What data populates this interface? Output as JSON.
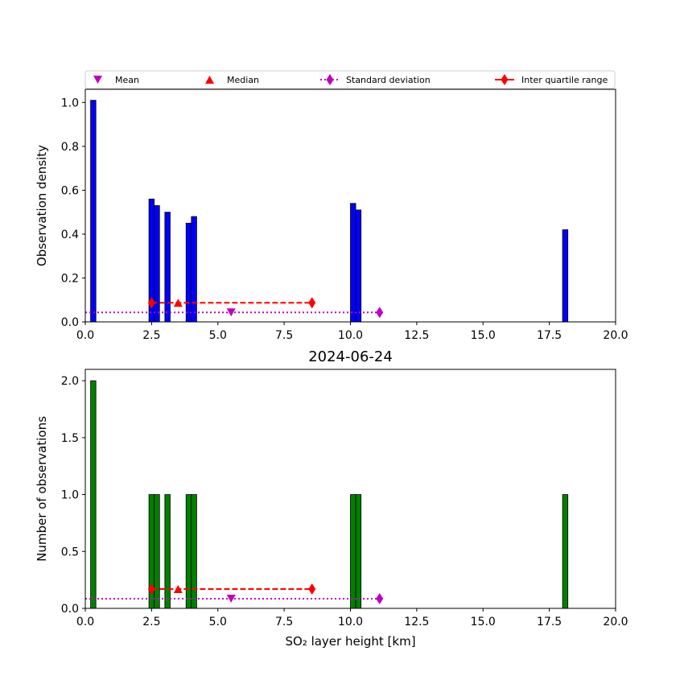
{
  "legend": {
    "entries": [
      {
        "label": "Mean",
        "marker": "triangle-down",
        "color": "#bf00bf",
        "line": "none"
      },
      {
        "label": "Median",
        "marker": "triangle-up",
        "color": "#ff0000",
        "line": "none"
      },
      {
        "label": "Standard deviation",
        "marker": "thin-diamond",
        "color": "#bf00bf",
        "line": "dotted"
      },
      {
        "label": "Inter quartile range",
        "marker": "thin-diamond",
        "color": "#ff0000",
        "line": "dashed"
      }
    ],
    "placement": "above-top-panel"
  },
  "chart_data": [
    {
      "type": "bar",
      "title": "",
      "xlabel": "",
      "ylabel": "Observation density",
      "xlim": [
        0,
        20
      ],
      "ylim": [
        0,
        1.06
      ],
      "xticks": [
        "0.0",
        "2.5",
        "5.0",
        "7.5",
        "10.0",
        "12.5",
        "15.0",
        "17.5",
        "20.0"
      ],
      "xtick_values": [
        0,
        2.5,
        5,
        7.5,
        10,
        12.5,
        15,
        17.5,
        20
      ],
      "yticks": [
        "0.0",
        "0.2",
        "0.4",
        "0.6",
        "0.8",
        "1.0"
      ],
      "ytick_values": [
        0,
        0.2,
        0.4,
        0.6,
        0.8,
        1.0
      ],
      "bar_color": "#0000ff",
      "bar_width": 0.2,
      "bars": [
        {
          "x": 0.3,
          "value": 1.01
        },
        {
          "x": 2.5,
          "value": 0.56
        },
        {
          "x": 2.7,
          "value": 0.53
        },
        {
          "x": 3.1,
          "value": 0.5
        },
        {
          "x": 3.9,
          "value": 0.45
        },
        {
          "x": 4.1,
          "value": 0.48
        },
        {
          "x": 10.1,
          "value": 0.54
        },
        {
          "x": 10.3,
          "value": 0.51
        },
        {
          "x": 18.1,
          "value": 0.42
        }
      ],
      "mean": {
        "x": 5.5,
        "y": 0.043
      },
      "median": {
        "x": 3.5,
        "y": 0.087
      },
      "std_range": {
        "x": [
          0.0,
          11.1
        ],
        "y": 0.043
      },
      "iqr_range": {
        "x": [
          2.5,
          8.55
        ],
        "y": 0.087
      }
    },
    {
      "type": "bar",
      "title": "2024-06-24",
      "xlabel": "SO₂ layer height [km]",
      "ylabel": "Number of observations",
      "xlim": [
        0,
        20
      ],
      "ylim": [
        0,
        2.1
      ],
      "xticks": [
        "0.0",
        "2.5",
        "5.0",
        "7.5",
        "10.0",
        "12.5",
        "15.0",
        "17.5",
        "20.0"
      ],
      "xtick_values": [
        0,
        2.5,
        5,
        7.5,
        10,
        12.5,
        15,
        17.5,
        20
      ],
      "yticks": [
        "0.0",
        "0.5",
        "1.0",
        "1.5",
        "2.0"
      ],
      "ytick_values": [
        0,
        0.5,
        1.0,
        1.5,
        2.0
      ],
      "bar_color": "#008000",
      "bar_width": 0.2,
      "bars": [
        {
          "x": 0.3,
          "value": 2
        },
        {
          "x": 2.5,
          "value": 1
        },
        {
          "x": 2.7,
          "value": 1
        },
        {
          "x": 3.1,
          "value": 1
        },
        {
          "x": 3.9,
          "value": 1
        },
        {
          "x": 4.1,
          "value": 1
        },
        {
          "x": 10.1,
          "value": 1
        },
        {
          "x": 10.3,
          "value": 1
        },
        {
          "x": 18.1,
          "value": 1
        }
      ],
      "mean": {
        "x": 5.5,
        "y": 0.085
      },
      "median": {
        "x": 3.5,
        "y": 0.17
      },
      "std_range": {
        "x": [
          0.0,
          11.1
        ],
        "y": 0.085
      },
      "iqr_range": {
        "x": [
          2.5,
          8.55
        ],
        "y": 0.17
      }
    }
  ]
}
